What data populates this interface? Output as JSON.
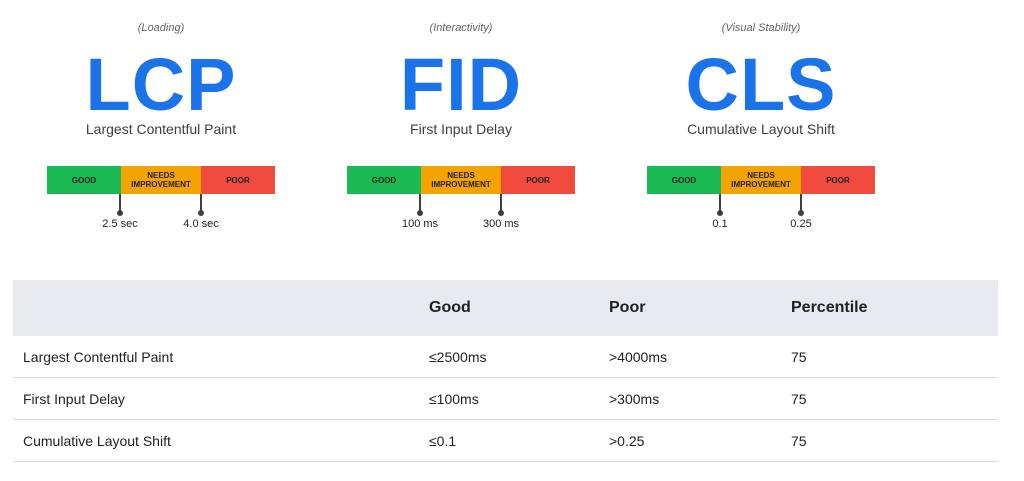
{
  "metrics": [
    {
      "category": "(Loading)",
      "abbr": "LCP",
      "full": "Largest Contentful Paint",
      "threshold_good": "2.5 sec",
      "threshold_poor": "4.0 sec"
    },
    {
      "category": "(Interactivity)",
      "abbr": "FID",
      "full": "First Input Delay",
      "threshold_good": "100 ms",
      "threshold_poor": "300 ms"
    },
    {
      "category": "(Visual Stability)",
      "abbr": "CLS",
      "full": "Cumulative Layout Shift",
      "threshold_good": "0.1",
      "threshold_poor": "0.25"
    }
  ],
  "bar_labels": {
    "good": "GOOD",
    "needs_line1": "NEEDS",
    "needs_line2": "IMPROVEMENT",
    "poor": "POOR"
  },
  "colors": {
    "good": "#1bba55",
    "needs": "#f5a300",
    "poor": "#f14a3f",
    "accent": "#1a73e8"
  },
  "table": {
    "headers": [
      "",
      "Good",
      "Poor",
      "Percentile"
    ],
    "rows": [
      [
        "Largest Contentful Paint",
        "≤2500ms",
        ">4000ms",
        "75"
      ],
      [
        "First Input Delay",
        "≤100ms",
        ">300ms",
        "75"
      ],
      [
        "Cumulative Layout Shift",
        "≤0.1",
        ">0.25",
        "75"
      ]
    ]
  }
}
